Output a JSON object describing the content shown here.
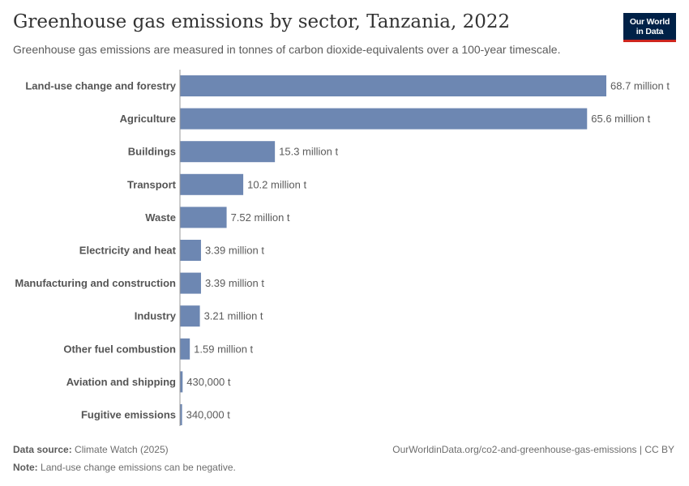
{
  "header": {
    "title": "Greenhouse gas emissions by sector, Tanzania, 2022",
    "subtitle": "Greenhouse gas emissions are measured in tonnes of carbon dioxide-equivalents over a 100-year timescale."
  },
  "logo": {
    "line1": "Our World",
    "line2": "in Data"
  },
  "footer": {
    "source_label": "Data source:",
    "source_value": "Climate Watch (2025)",
    "note_label": "Note:",
    "note_value": "Land-use change emissions can be negative.",
    "url": "OurWorldinData.org/co2-and-greenhouse-gas-emissions | CC BY"
  },
  "chart_data": {
    "type": "bar",
    "orientation": "horizontal",
    "unit": "tonnes CO2-equivalent",
    "bar_color": "#6d87b2",
    "categories": [
      "Land-use change and forestry",
      "Agriculture",
      "Buildings",
      "Transport",
      "Waste",
      "Electricity and heat",
      "Manufacturing and construction",
      "Industry",
      "Other fuel combustion",
      "Aviation and shipping",
      "Fugitive emissions"
    ],
    "values": [
      68700000,
      65600000,
      15300000,
      10200000,
      7520000,
      3390000,
      3390000,
      3210000,
      1590000,
      430000,
      340000
    ],
    "data_labels": [
      "68.7 million t",
      "65.6 million t",
      "15.3 million t",
      "10.2 million t",
      "7.52 million t",
      "3.39 million t",
      "3.39 million t",
      "3.21 million t",
      "1.59 million t",
      "430,000 t",
      "340,000 t"
    ],
    "xlim": [
      0,
      68700000
    ]
  }
}
